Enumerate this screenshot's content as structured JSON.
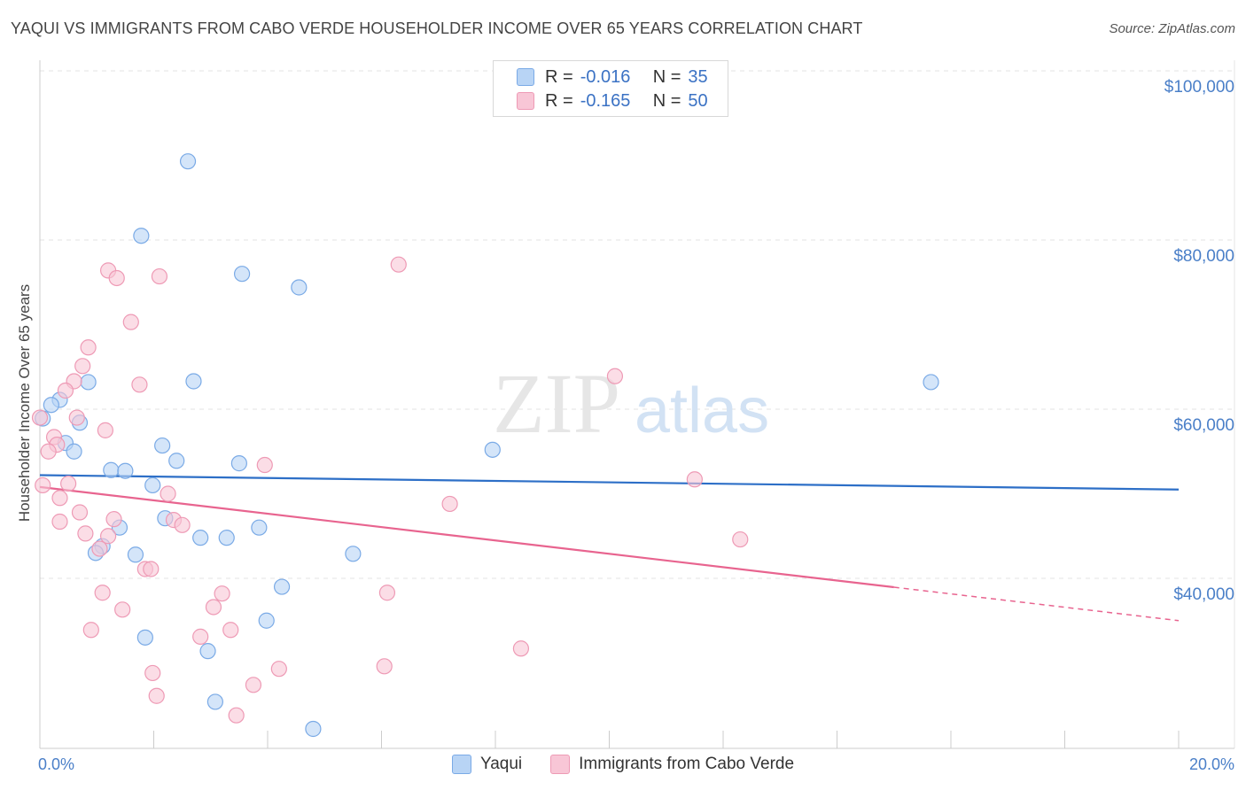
{
  "header": {
    "title": "YAQUI VS IMMIGRANTS FROM CABO VERDE HOUSEHOLDER INCOME OVER 65 YEARS CORRELATION CHART",
    "source": "Source: ZipAtlas.com"
  },
  "watermark": {
    "zip": "ZIP",
    "atlas": "atlas"
  },
  "legend_top": {
    "r_label": "R =",
    "n_label": "N =",
    "rows": [
      {
        "r_value": "-0.016",
        "n_value": "35"
      },
      {
        "r_value": "-0.165",
        "n_value": "50"
      }
    ]
  },
  "legend_bottom": {
    "items": [
      {
        "label": "Yaqui"
      },
      {
        "label": "Immigrants from Cabo Verde"
      }
    ]
  },
  "colors": {
    "blue_fill": "#b8d4f5",
    "blue_stroke": "#7aaae6",
    "blue_line": "#2d6fc7",
    "pink_fill": "#f8c6d6",
    "pink_stroke": "#ee9ab5",
    "pink_line": "#e8648f",
    "tick_text": "#4a7fc8"
  },
  "chart_data": {
    "type": "scatter",
    "title": "YAQUI VS IMMIGRANTS FROM CABO VERDE HOUSEHOLDER INCOME OVER 65 YEARS CORRELATION CHART",
    "xlabel": "",
    "ylabel": "Householder Income Over 65 years",
    "xlim": [
      0,
      20
    ],
    "ylim": [
      20000,
      102000
    ],
    "x_tick_labels": [
      {
        "value": 0,
        "label": "0.0%"
      },
      {
        "value": 20,
        "label": "20.0%"
      }
    ],
    "x_minor_ticks": [
      0,
      2,
      4,
      6,
      8,
      10,
      12,
      14,
      16,
      18,
      20
    ],
    "y_ticks": [
      {
        "value": 100000,
        "label": "$100,000"
      },
      {
        "value": 80000,
        "label": "$80,000"
      },
      {
        "value": 60000,
        "label": "$60,000"
      },
      {
        "value": 40000,
        "label": "$40,000"
      }
    ],
    "grid": true,
    "series": [
      {
        "name": "Yaqui",
        "color": "blue",
        "r": "-0.016",
        "n": "35",
        "trend": {
          "x0": 0,
          "y0": 52200,
          "x1": 20,
          "y1": 50500,
          "solid_until": 20
        },
        "points": [
          [
            2.6,
            89300
          ],
          [
            1.78,
            80500
          ],
          [
            3.55,
            76000
          ],
          [
            4.55,
            74400
          ],
          [
            15.65,
            63200
          ],
          [
            0.85,
            63200
          ],
          [
            2.7,
            63300
          ],
          [
            0.35,
            61100
          ],
          [
            0.2,
            60500
          ],
          [
            0.7,
            58400
          ],
          [
            0.05,
            58900
          ],
          [
            0.45,
            56000
          ],
          [
            2.15,
            55700
          ],
          [
            0.6,
            55000
          ],
          [
            7.95,
            55200
          ],
          [
            2.4,
            53900
          ],
          [
            3.5,
            53600
          ],
          [
            1.25,
            52800
          ],
          [
            1.5,
            52700
          ],
          [
            1.98,
            51000
          ],
          [
            2.2,
            47100
          ],
          [
            1.4,
            46000
          ],
          [
            3.85,
            46000
          ],
          [
            2.82,
            44800
          ],
          [
            3.28,
            44800
          ],
          [
            1.1,
            43800
          ],
          [
            0.98,
            43000
          ],
          [
            1.68,
            42800
          ],
          [
            5.5,
            42900
          ],
          [
            4.25,
            39000
          ],
          [
            3.98,
            35000
          ],
          [
            1.85,
            33000
          ],
          [
            2.95,
            31400
          ],
          [
            3.08,
            25400
          ],
          [
            4.8,
            22200
          ]
        ]
      },
      {
        "name": "Immigrants from Cabo Verde",
        "color": "pink",
        "r": "-0.165",
        "n": "50",
        "trend": {
          "x0": 0,
          "y0": 50800,
          "x1": 20,
          "y1": 35000,
          "solid_until": 15
        },
        "points": [
          [
            6.3,
            77100
          ],
          [
            1.2,
            76400
          ],
          [
            1.35,
            75500
          ],
          [
            2.1,
            75700
          ],
          [
            1.6,
            70300
          ],
          [
            0.85,
            67300
          ],
          [
            0.75,
            65100
          ],
          [
            10.1,
            63900
          ],
          [
            0.6,
            63300
          ],
          [
            1.75,
            62900
          ],
          [
            0.45,
            62200
          ],
          [
            0.0,
            59000
          ],
          [
            0.65,
            59000
          ],
          [
            1.15,
            57500
          ],
          [
            0.25,
            56700
          ],
          [
            0.3,
            55800
          ],
          [
            0.15,
            55000
          ],
          [
            3.95,
            53400
          ],
          [
            11.5,
            51700
          ],
          [
            0.5,
            51200
          ],
          [
            0.05,
            51000
          ],
          [
            2.25,
            50000
          ],
          [
            0.35,
            49500
          ],
          [
            7.2,
            48800
          ],
          [
            0.7,
            47800
          ],
          [
            1.3,
            47000
          ],
          [
            0.35,
            46700
          ],
          [
            2.35,
            46900
          ],
          [
            2.5,
            46300
          ],
          [
            0.8,
            45300
          ],
          [
            1.2,
            45000
          ],
          [
            12.3,
            44600
          ],
          [
            1.05,
            43500
          ],
          [
            1.85,
            41100
          ],
          [
            1.95,
            41100
          ],
          [
            1.1,
            38300
          ],
          [
            3.2,
            38200
          ],
          [
            6.1,
            38300
          ],
          [
            3.05,
            36600
          ],
          [
            1.45,
            36300
          ],
          [
            0.9,
            33900
          ],
          [
            3.35,
            33900
          ],
          [
            2.82,
            33100
          ],
          [
            8.45,
            31700
          ],
          [
            4.2,
            29300
          ],
          [
            6.05,
            29600
          ],
          [
            1.98,
            28800
          ],
          [
            3.75,
            27400
          ],
          [
            2.05,
            26100
          ],
          [
            3.45,
            23800
          ]
        ]
      }
    ]
  }
}
